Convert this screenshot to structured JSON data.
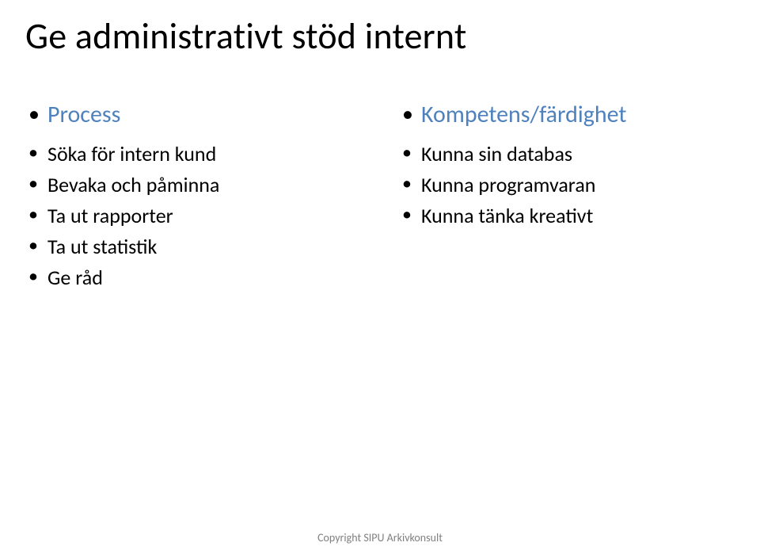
{
  "title": "Ge administrativt stöd internt",
  "left": {
    "heading": "Process",
    "heading_color": "#4f81bd",
    "items": [
      "Söka för intern kund",
      "Bevaka och påminna",
      "Ta ut rapporter",
      "Ta ut statistik",
      "Ge råd"
    ]
  },
  "right": {
    "heading": "Kompetens/färdighet",
    "heading_color": "#4f81bd",
    "items": [
      "Kunna sin databas",
      "Kunna programvaran",
      "Kunna tänka kreativt"
    ]
  },
  "footer": "Copyright SIPU Arkivkonsult",
  "colors": {
    "background": "#ffffff",
    "title_text": "#000000",
    "body_text": "#000000",
    "accent": "#4f81bd",
    "footer_text": "#808080"
  },
  "typography": {
    "title_fontsize": 46,
    "subhead_fontsize": 30,
    "item_fontsize": 26,
    "footer_fontsize": 14,
    "font_family": "Calibri"
  }
}
